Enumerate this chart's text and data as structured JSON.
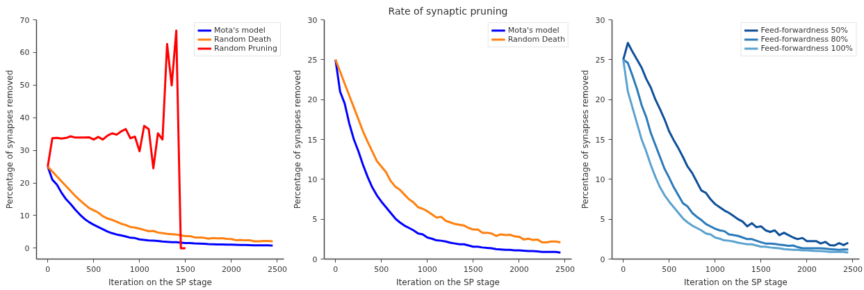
{
  "chart_data": [
    {
      "type": "line",
      "xlabel": "Iteration on the SP stage",
      "ylabel": "Percentage of synapses removed",
      "legend": "top right",
      "grid": false,
      "xlim": [
        -122.5,
        2572.5
      ],
      "ylim": [
        -3.33,
        70
      ],
      "xticks": [
        0,
        500,
        1000,
        1500,
        2000,
        2500
      ],
      "yticks": [
        0,
        10,
        20,
        30,
        40,
        50,
        60,
        70
      ],
      "x": [
        0,
        50,
        100,
        150,
        200,
        250,
        300,
        350,
        400,
        450,
        500,
        550,
        600,
        650,
        700,
        750,
        800,
        850,
        900,
        950,
        1000,
        1050,
        1100,
        1150,
        1200,
        1250,
        1300,
        1350,
        1400,
        1450,
        1500,
        1550,
        1600,
        1650,
        1700,
        1750,
        1800,
        1850,
        1900,
        1950,
        2000,
        2050,
        2100,
        2150,
        2200,
        2250,
        2300,
        2350,
        2400,
        2450
      ],
      "series": [
        {
          "name": "Mota's model",
          "color": "#0000ff",
          "values": [
            25,
            21,
            19.5,
            17,
            15,
            13.5,
            11.8,
            10.3,
            9,
            8,
            7.2,
            6.5,
            5.8,
            5.1,
            4.6,
            4.2,
            3.9,
            3.6,
            3.2,
            3.1,
            2.7,
            2.55,
            2.35,
            2.3,
            2.2,
            2.05,
            1.95,
            1.85,
            1.85,
            1.7,
            1.55,
            1.55,
            1.45,
            1.4,
            1.35,
            1.25,
            1.2,
            1.15,
            1.15,
            1.1,
            1.1,
            1.05,
            1.0,
            1.0,
            0.95,
            0.9,
            0.9,
            0.9,
            0.9,
            0.8
          ]
        },
        {
          "name": "Random Death",
          "color": "#ff7f0e",
          "values": [
            25,
            23.5,
            22,
            20.5,
            19,
            17.5,
            16,
            14.7,
            13.5,
            12.3,
            11.6,
            10.9,
            9.8,
            9.1,
            8.7,
            8.1,
            7.5,
            7.1,
            6.5,
            6.3,
            6.0,
            5.6,
            5.2,
            5.3,
            4.8,
            4.6,
            4.4,
            4.3,
            4.2,
            3.9,
            3.7,
            3.7,
            3.3,
            3.3,
            3.2,
            2.9,
            3.1,
            3.0,
            3.05,
            2.85,
            2.8,
            2.45,
            2.55,
            2.4,
            2.45,
            2.1,
            2.1,
            2.2,
            2.2,
            2.1
          ]
        },
        {
          "name": "Random Pruning",
          "color": "#ff0000",
          "x": [
            0,
            50,
            100,
            150,
            200,
            250,
            300,
            350,
            400,
            450,
            500,
            550,
            600,
            650,
            700,
            750,
            800,
            850,
            900,
            950,
            1000,
            1050,
            1100,
            1150,
            1200,
            1250,
            1300,
            1350,
            1400,
            1450,
            1500
          ],
          "values": [
            25,
            33.7,
            33.8,
            33.6,
            33.8,
            34.3,
            33.9,
            33.9,
            33.9,
            34,
            33.3,
            34.1,
            33.3,
            34.5,
            35.2,
            34.8,
            35.8,
            36.5,
            33.7,
            34.2,
            29.7,
            37.5,
            36.5,
            24.5,
            35.2,
            33.3,
            62.6,
            49.9,
            66.7,
            0,
            0
          ]
        }
      ]
    },
    {
      "type": "line",
      "title": "Rate of synaptic pruning",
      "xlabel": "Iteration on the SP stage",
      "ylabel": "Percentage of synapses removed",
      "legend": "top right",
      "grid": false,
      "xlim": [
        -122.5,
        2572.5
      ],
      "ylim": [
        0,
        30
      ],
      "xticks": [
        0,
        500,
        1000,
        1500,
        2000,
        2500
      ],
      "yticks": [
        0,
        5,
        10,
        15,
        20,
        25,
        30
      ],
      "x": [
        0,
        50,
        100,
        150,
        200,
        250,
        300,
        350,
        400,
        450,
        500,
        550,
        600,
        650,
        700,
        750,
        800,
        850,
        900,
        950,
        1000,
        1050,
        1100,
        1150,
        1200,
        1250,
        1300,
        1350,
        1400,
        1450,
        1500,
        1550,
        1600,
        1650,
        1700,
        1750,
        1800,
        1850,
        1900,
        1950,
        2000,
        2050,
        2100,
        2150,
        2200,
        2250,
        2300,
        2350,
        2400,
        2450
      ],
      "series": [
        {
          "name": "Mota's model",
          "color": "#0000ff",
          "values": [
            25,
            21,
            19.5,
            17,
            15,
            13.5,
            11.8,
            10.3,
            9,
            8,
            7.2,
            6.5,
            5.8,
            5.1,
            4.6,
            4.2,
            3.9,
            3.6,
            3.2,
            3.1,
            2.7,
            2.55,
            2.35,
            2.3,
            2.2,
            2.05,
            1.95,
            1.85,
            1.85,
            1.7,
            1.55,
            1.55,
            1.45,
            1.4,
            1.35,
            1.25,
            1.2,
            1.15,
            1.15,
            1.1,
            1.1,
            1.05,
            1.0,
            1.0,
            0.95,
            0.9,
            0.9,
            0.9,
            0.9,
            0.8
          ]
        },
        {
          "name": "Random Death",
          "color": "#ff7f0e",
          "values": [
            25,
            23.5,
            22,
            20.5,
            19,
            17.5,
            16,
            14.7,
            13.5,
            12.3,
            11.6,
            10.9,
            9.8,
            9.1,
            8.7,
            8.1,
            7.5,
            7.1,
            6.5,
            6.3,
            6.0,
            5.6,
            5.2,
            5.3,
            4.8,
            4.6,
            4.4,
            4.3,
            4.2,
            3.9,
            3.7,
            3.7,
            3.3,
            3.3,
            3.2,
            2.9,
            3.1,
            3.0,
            3.05,
            2.85,
            2.8,
            2.45,
            2.55,
            2.4,
            2.45,
            2.1,
            2.1,
            2.2,
            2.2,
            2.1
          ]
        }
      ]
    },
    {
      "type": "line",
      "xlabel": "Iteration on the SP stage",
      "ylabel": "Percentage of synapses removed",
      "legend": "top right",
      "grid": false,
      "xlim": [
        -122.5,
        2572.5
      ],
      "ylim": [
        0,
        30
      ],
      "xticks": [
        0,
        500,
        1000,
        1500,
        2000,
        2500
      ],
      "yticks": [
        0,
        5,
        10,
        15,
        20,
        25,
        30
      ],
      "x": [
        0,
        50,
        100,
        150,
        200,
        250,
        300,
        350,
        400,
        450,
        500,
        550,
        600,
        650,
        700,
        750,
        800,
        850,
        900,
        950,
        1000,
        1050,
        1100,
        1150,
        1200,
        1250,
        1300,
        1350,
        1400,
        1450,
        1500,
        1550,
        1600,
        1650,
        1700,
        1750,
        1800,
        1850,
        1900,
        1950,
        2000,
        2050,
        2100,
        2150,
        2200,
        2250,
        2300,
        2350,
        2400,
        2450
      ],
      "series": [
        {
          "name": "Feed-forwardness 50%",
          "color": "#0d4f98",
          "values": [
            25,
            27.1,
            26,
            25,
            24,
            22.6,
            21.5,
            20,
            18.8,
            17.5,
            16,
            14.9,
            13.9,
            12.8,
            11.6,
            10.8,
            9.7,
            8.6,
            8.3,
            7.5,
            6.9,
            6.5,
            6.1,
            5.8,
            5.4,
            5.0,
            4.7,
            4.1,
            4.5,
            4.0,
            4.1,
            3.6,
            3.4,
            3.6,
            3.0,
            3.3,
            3.0,
            2.7,
            2.5,
            2.65,
            2.25,
            2.25,
            2.25,
            1.95,
            2.15,
            1.75,
            1.7,
            2.0,
            1.75,
            2.05
          ]
        },
        {
          "name": "Feed-forwardness 80%",
          "color": "#2a79b9",
          "values": [
            25,
            24.6,
            23,
            21.3,
            19.3,
            17.8,
            15.8,
            14.3,
            12.8,
            11.3,
            10.2,
            9.0,
            8.0,
            7.0,
            6.6,
            5.8,
            5.3,
            4.9,
            4.4,
            4.1,
            3.8,
            3.6,
            3.5,
            3.1,
            3.0,
            2.9,
            2.7,
            2.5,
            2.5,
            2.3,
            2.1,
            1.95,
            1.95,
            1.9,
            1.8,
            1.75,
            1.65,
            1.7,
            1.5,
            1.35,
            1.35,
            1.35,
            1.35,
            1.35,
            1.3,
            1.25,
            1.2,
            1.15,
            1.2,
            1.2
          ]
        },
        {
          "name": "Feed-forwardness 100%",
          "color": "#5aa2d0",
          "values": [
            25,
            21,
            19,
            17,
            15,
            13.5,
            11.8,
            10.3,
            9,
            8,
            7.2,
            6.5,
            5.8,
            5.1,
            4.6,
            4.2,
            3.9,
            3.6,
            3.2,
            3.1,
            2.7,
            2.55,
            2.35,
            2.3,
            2.2,
            2.05,
            1.95,
            1.85,
            1.85,
            1.7,
            1.55,
            1.55,
            1.45,
            1.4,
            1.35,
            1.25,
            1.2,
            1.15,
            1.15,
            1.1,
            1.1,
            1.05,
            1.0,
            1.0,
            0.95,
            0.9,
            0.9,
            0.9,
            0.9,
            0.8
          ]
        }
      ]
    }
  ]
}
